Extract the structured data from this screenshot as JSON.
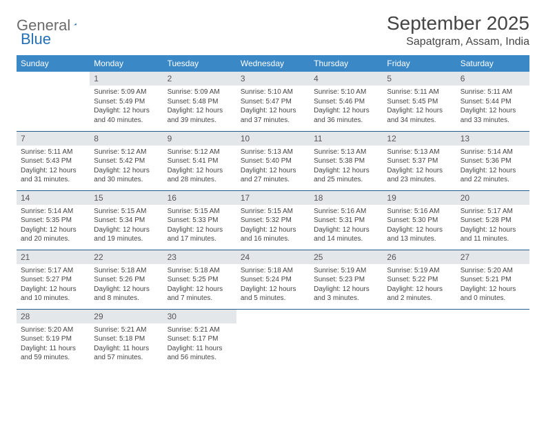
{
  "logo": {
    "text1": "General",
    "text2": "Blue"
  },
  "title": "September 2025",
  "location": "Sapatgram, Assam, India",
  "colors": {
    "header_bg": "#3b88c7",
    "daynum_bg": "#e4e7ea",
    "row_border": "#1f5a8a",
    "logo_gray": "#6b6b6b",
    "logo_blue": "#2570b4"
  },
  "day_headers": [
    "Sunday",
    "Monday",
    "Tuesday",
    "Wednesday",
    "Thursday",
    "Friday",
    "Saturday"
  ],
  "weeks": [
    [
      null,
      {
        "n": "1",
        "sr": "Sunrise: 5:09 AM",
        "ss": "Sunset: 5:49 PM",
        "dl": "Daylight: 12 hours and 40 minutes."
      },
      {
        "n": "2",
        "sr": "Sunrise: 5:09 AM",
        "ss": "Sunset: 5:48 PM",
        "dl": "Daylight: 12 hours and 39 minutes."
      },
      {
        "n": "3",
        "sr": "Sunrise: 5:10 AM",
        "ss": "Sunset: 5:47 PM",
        "dl": "Daylight: 12 hours and 37 minutes."
      },
      {
        "n": "4",
        "sr": "Sunrise: 5:10 AM",
        "ss": "Sunset: 5:46 PM",
        "dl": "Daylight: 12 hours and 36 minutes."
      },
      {
        "n": "5",
        "sr": "Sunrise: 5:11 AM",
        "ss": "Sunset: 5:45 PM",
        "dl": "Daylight: 12 hours and 34 minutes."
      },
      {
        "n": "6",
        "sr": "Sunrise: 5:11 AM",
        "ss": "Sunset: 5:44 PM",
        "dl": "Daylight: 12 hours and 33 minutes."
      }
    ],
    [
      {
        "n": "7",
        "sr": "Sunrise: 5:11 AM",
        "ss": "Sunset: 5:43 PM",
        "dl": "Daylight: 12 hours and 31 minutes."
      },
      {
        "n": "8",
        "sr": "Sunrise: 5:12 AM",
        "ss": "Sunset: 5:42 PM",
        "dl": "Daylight: 12 hours and 30 minutes."
      },
      {
        "n": "9",
        "sr": "Sunrise: 5:12 AM",
        "ss": "Sunset: 5:41 PM",
        "dl": "Daylight: 12 hours and 28 minutes."
      },
      {
        "n": "10",
        "sr": "Sunrise: 5:13 AM",
        "ss": "Sunset: 5:40 PM",
        "dl": "Daylight: 12 hours and 27 minutes."
      },
      {
        "n": "11",
        "sr": "Sunrise: 5:13 AM",
        "ss": "Sunset: 5:38 PM",
        "dl": "Daylight: 12 hours and 25 minutes."
      },
      {
        "n": "12",
        "sr": "Sunrise: 5:13 AM",
        "ss": "Sunset: 5:37 PM",
        "dl": "Daylight: 12 hours and 23 minutes."
      },
      {
        "n": "13",
        "sr": "Sunrise: 5:14 AM",
        "ss": "Sunset: 5:36 PM",
        "dl": "Daylight: 12 hours and 22 minutes."
      }
    ],
    [
      {
        "n": "14",
        "sr": "Sunrise: 5:14 AM",
        "ss": "Sunset: 5:35 PM",
        "dl": "Daylight: 12 hours and 20 minutes."
      },
      {
        "n": "15",
        "sr": "Sunrise: 5:15 AM",
        "ss": "Sunset: 5:34 PM",
        "dl": "Daylight: 12 hours and 19 minutes."
      },
      {
        "n": "16",
        "sr": "Sunrise: 5:15 AM",
        "ss": "Sunset: 5:33 PM",
        "dl": "Daylight: 12 hours and 17 minutes."
      },
      {
        "n": "17",
        "sr": "Sunrise: 5:15 AM",
        "ss": "Sunset: 5:32 PM",
        "dl": "Daylight: 12 hours and 16 minutes."
      },
      {
        "n": "18",
        "sr": "Sunrise: 5:16 AM",
        "ss": "Sunset: 5:31 PM",
        "dl": "Daylight: 12 hours and 14 minutes."
      },
      {
        "n": "19",
        "sr": "Sunrise: 5:16 AM",
        "ss": "Sunset: 5:30 PM",
        "dl": "Daylight: 12 hours and 13 minutes."
      },
      {
        "n": "20",
        "sr": "Sunrise: 5:17 AM",
        "ss": "Sunset: 5:28 PM",
        "dl": "Daylight: 12 hours and 11 minutes."
      }
    ],
    [
      {
        "n": "21",
        "sr": "Sunrise: 5:17 AM",
        "ss": "Sunset: 5:27 PM",
        "dl": "Daylight: 12 hours and 10 minutes."
      },
      {
        "n": "22",
        "sr": "Sunrise: 5:18 AM",
        "ss": "Sunset: 5:26 PM",
        "dl": "Daylight: 12 hours and 8 minutes."
      },
      {
        "n": "23",
        "sr": "Sunrise: 5:18 AM",
        "ss": "Sunset: 5:25 PM",
        "dl": "Daylight: 12 hours and 7 minutes."
      },
      {
        "n": "24",
        "sr": "Sunrise: 5:18 AM",
        "ss": "Sunset: 5:24 PM",
        "dl": "Daylight: 12 hours and 5 minutes."
      },
      {
        "n": "25",
        "sr": "Sunrise: 5:19 AM",
        "ss": "Sunset: 5:23 PM",
        "dl": "Daylight: 12 hours and 3 minutes."
      },
      {
        "n": "26",
        "sr": "Sunrise: 5:19 AM",
        "ss": "Sunset: 5:22 PM",
        "dl": "Daylight: 12 hours and 2 minutes."
      },
      {
        "n": "27",
        "sr": "Sunrise: 5:20 AM",
        "ss": "Sunset: 5:21 PM",
        "dl": "Daylight: 12 hours and 0 minutes."
      }
    ],
    [
      {
        "n": "28",
        "sr": "Sunrise: 5:20 AM",
        "ss": "Sunset: 5:19 PM",
        "dl": "Daylight: 11 hours and 59 minutes."
      },
      {
        "n": "29",
        "sr": "Sunrise: 5:21 AM",
        "ss": "Sunset: 5:18 PM",
        "dl": "Daylight: 11 hours and 57 minutes."
      },
      {
        "n": "30",
        "sr": "Sunrise: 5:21 AM",
        "ss": "Sunset: 5:17 PM",
        "dl": "Daylight: 11 hours and 56 minutes."
      },
      null,
      null,
      null,
      null
    ]
  ]
}
